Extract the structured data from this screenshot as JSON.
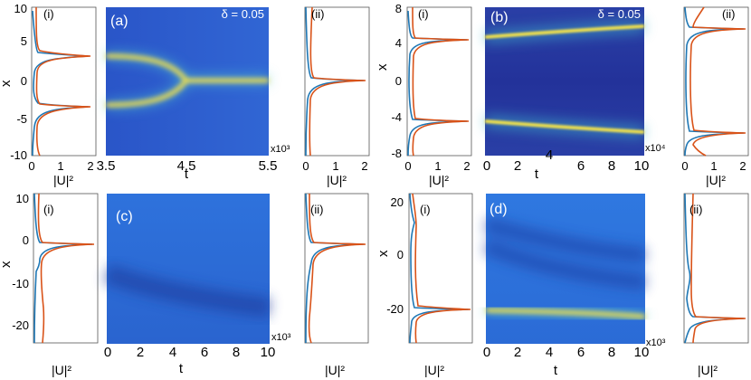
{
  "figure": {
    "panels": [
      {
        "id": "a",
        "label": "(a)",
        "delta_label": "δ = 0.05",
        "side_labels": [
          "(i)",
          "(ii)"
        ],
        "x_axis": {
          "label": "t",
          "ticks": [
            "3.5",
            "4.5",
            "5.5"
          ],
          "multiplier": "x10³"
        },
        "y_axis": {
          "label": "x",
          "ticks": [
            "10",
            "5",
            "0",
            "-5",
            "-10"
          ]
        },
        "profile_axis": {
          "label": "|U|²",
          "ticks_i": [
            "0",
            "1",
            "2"
          ],
          "ticks_ii": [
            "0",
            "1",
            "2"
          ]
        }
      },
      {
        "id": "b",
        "label": "(b)",
        "delta_label": "δ = 0.05",
        "side_labels": [
          "(i)",
          "(ii)"
        ],
        "x_axis": {
          "label": "t",
          "ticks": [
            "0",
            "2",
            "4",
            "6",
            "8",
            "10"
          ],
          "multiplier": "x10⁴"
        },
        "y_axis": {
          "label": "x",
          "ticks": [
            "8",
            "4",
            "0",
            "-4",
            "-8"
          ]
        },
        "profile_axis": {
          "label": "|U|²",
          "ticks_i": [
            "0",
            "1",
            "2"
          ],
          "ticks_ii": [
            "0",
            "1",
            "2"
          ]
        }
      },
      {
        "id": "c",
        "label": "(c)",
        "side_labels": [
          "(i)",
          "(ii)"
        ],
        "x_axis": {
          "label": "t",
          "ticks": [
            "0",
            "2",
            "4",
            "6",
            "8",
            "10"
          ],
          "multiplier": "x10³"
        },
        "y_axis": {
          "label": "x",
          "ticks": [
            "10",
            "0",
            "-10",
            "-20"
          ]
        },
        "profile_axis": {
          "label": "|U|²"
        }
      },
      {
        "id": "d",
        "label": "(d)",
        "side_labels": [
          "(i)",
          "(ii)"
        ],
        "x_axis": {
          "label": "t",
          "ticks": [
            "0",
            "2",
            "4",
            "6",
            "8",
            "10"
          ],
          "multiplier": "x10³"
        },
        "y_axis": {
          "label": "x",
          "ticks": [
            "20",
            "0",
            "-20"
          ]
        },
        "profile_axis": {
          "label": "|U|²"
        }
      }
    ]
  },
  "chart_data": [
    {
      "type": "heatmap",
      "panel": "a",
      "x_range": [
        3500,
        5500
      ],
      "y_range": [
        -10,
        10
      ],
      "features": [
        {
          "kind": "bright_track",
          "x_start": 3500,
          "x_end": 4500,
          "y_start": 3.4,
          "y_end": 0.3
        },
        {
          "kind": "bright_track",
          "x_start": 3500,
          "x_end": 4500,
          "y_start": -3.4,
          "y_end": -0.3
        },
        {
          "kind": "bright_track",
          "x_start": 4500,
          "x_end": 5500,
          "y_start": 0,
          "y_end": 0
        }
      ],
      "profile_i": {
        "colors": {
          "blue": "#1f77b4",
          "orange": "#d95319"
        },
        "peaks": [
          3.4,
          -3.4
        ],
        "peak_value": 1.9
      },
      "profile_ii": {
        "peaks": [
          0
        ],
        "peak_value": 1.9
      }
    },
    {
      "type": "heatmap",
      "panel": "b",
      "x_range": [
        0,
        100000
      ],
      "y_range": [
        -8,
        8
      ],
      "features": [
        {
          "kind": "bright_track",
          "x_start": 0,
          "x_end": 100000,
          "y_start": 5.0,
          "y_end": 6.2
        },
        {
          "kind": "bright_track",
          "x_start": 0,
          "x_end": 100000,
          "y_start": -5.0,
          "y_end": -6.2
        }
      ],
      "profile_i": {
        "peaks": [
          4.8,
          -4.8
        ],
        "peak_value": 1.9
      },
      "profile_ii": {
        "peaks": [
          6.1,
          -6.1
        ],
        "peak_value": 1.9
      }
    },
    {
      "type": "heatmap",
      "panel": "c",
      "x_range": [
        0,
        10000
      ],
      "y_range": [
        -25,
        10
      ],
      "features": [
        {
          "kind": "bright_track",
          "x_start": 0,
          "x_end": 10000,
          "y_start": -2.5,
          "y_end": -2.5
        },
        {
          "kind": "dark_track",
          "x_start": 0,
          "x_end": 10000,
          "y_start": -9,
          "y_end": -17
        }
      ],
      "profile_i": {
        "peaks": [
          -2.5
        ],
        "peak_value": 1.6
      },
      "profile_ii": {
        "peaks": [
          -2.5
        ],
        "peak_value": 1.6
      }
    },
    {
      "type": "heatmap",
      "panel": "d",
      "x_range": [
        0,
        10000
      ],
      "y_range": [
        -30,
        20
      ],
      "features": [
        {
          "kind": "bright_track",
          "x_start": 0,
          "x_end": 10000,
          "y_start": -18,
          "y_end": -20
        },
        {
          "kind": "dark_track",
          "x_start": 0,
          "x_end": 10000,
          "y_start": 12,
          "y_end": 2
        },
        {
          "kind": "dark_track",
          "x_start": 0,
          "x_end": 10000,
          "y_start": 4,
          "y_end": -6
        }
      ],
      "profile_i": {
        "peaks": [
          -18
        ],
        "peak_value": 1.6
      },
      "profile_ii": {
        "peaks": [
          -20
        ],
        "peak_value": 1.6
      }
    }
  ]
}
